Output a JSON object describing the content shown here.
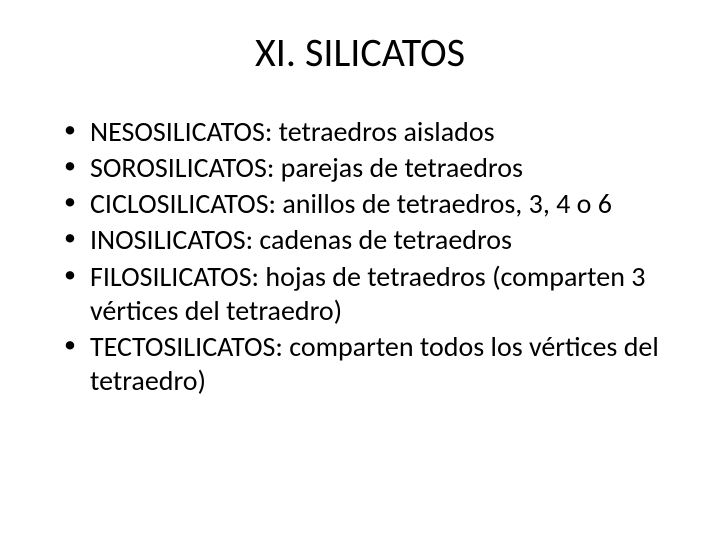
{
  "slide": {
    "title": "XI. SILICATOS",
    "title_fontsize": 40,
    "title_color": "#000000",
    "body_fontsize": 28,
    "body_color": "#000000",
    "background_color": "#ffffff",
    "bullet_char": "•",
    "items": [
      "NESOSILICATOS: tetraedros aislados",
      "SOROSILICATOS: parejas de tetraedros",
      "CICLOSILICATOS: anillos de tetraedros, 3, 4 o 6",
      "INOSILICATOS: cadenas de tetraedros",
      "FILOSILICATOS: hojas de tetraedros (comparten 3 vértices del tetraedro)",
      "TECTOSILICATOS: comparten todos los vértices del tetraedro)"
    ]
  }
}
